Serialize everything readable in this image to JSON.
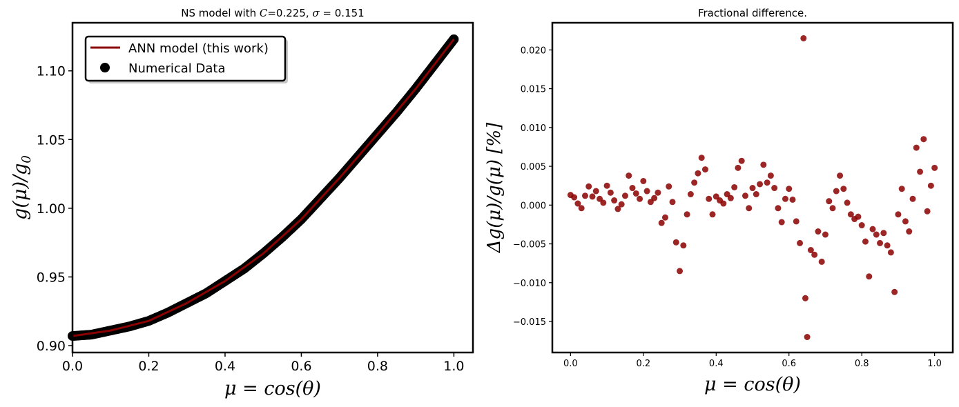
{
  "colors": {
    "ann_line": "#8b0000",
    "numerical_points": "#000000",
    "residual_points": "#8b0000"
  },
  "chart_data": [
    {
      "type": "scatter",
      "title": "NS model with C=0.225, σ = 0.151",
      "xlabel": "μ = cos(θ)",
      "ylabel": "g(μ)/g₀",
      "xlim": [
        0.0,
        1.05
      ],
      "ylim": [
        0.895,
        1.135
      ],
      "x_ticks": [
        "0.0",
        "0.2",
        "0.4",
        "0.6",
        "0.8",
        "1.0"
      ],
      "y_ticks": [
        "0.90",
        "0.95",
        "1.00",
        "1.05",
        "1.10"
      ],
      "grid": false,
      "legend_placement": "top-left",
      "series": [
        {
          "name": "ANN model (this work)",
          "kind": "line",
          "x": [
            0.0,
            0.1,
            0.2,
            0.3,
            0.4,
            0.5,
            0.6,
            0.7,
            0.8,
            0.9,
            1.0
          ],
          "y": [
            0.907,
            0.911,
            0.918,
            0.931,
            0.947,
            0.967,
            0.992,
            1.022,
            1.054,
            1.087,
            1.123
          ]
        },
        {
          "name": "Numerical Data",
          "kind": "scatter",
          "x": [
            0.0,
            0.05,
            0.1,
            0.15,
            0.2,
            0.25,
            0.3,
            0.35,
            0.4,
            0.45,
            0.5,
            0.55,
            0.6,
            0.65,
            0.7,
            0.75,
            0.8,
            0.85,
            0.9,
            0.95,
            1.0
          ],
          "y": [
            0.907,
            0.908,
            0.911,
            0.914,
            0.918,
            0.924,
            0.931,
            0.938,
            0.947,
            0.956,
            0.967,
            0.979,
            0.992,
            1.007,
            1.022,
            1.038,
            1.054,
            1.07,
            1.087,
            1.105,
            1.123
          ]
        }
      ]
    },
    {
      "type": "scatter",
      "title": "Fractional difference.",
      "xlabel": "μ = cos(θ)",
      "ylabel": "Δg(μ)/g(μ)  [%]",
      "xlim": [
        -0.05,
        1.05
      ],
      "ylim": [
        -0.019,
        0.0235
      ],
      "x_ticks": [
        "0.0",
        "0.2",
        "0.4",
        "0.6",
        "0.8",
        "1.0"
      ],
      "y_ticks": [
        "0.020",
        "0.015",
        "0.010",
        "0.005",
        "0.000",
        "−0.005",
        "−0.010",
        "−0.015"
      ],
      "grid": false,
      "series": [
        {
          "name": "",
          "x": [
            0.0,
            0.01,
            0.02,
            0.03,
            0.04,
            0.05,
            0.06,
            0.07,
            0.08,
            0.09,
            0.1,
            0.11,
            0.12,
            0.13,
            0.14,
            0.15,
            0.16,
            0.17,
            0.18,
            0.19,
            0.2,
            0.21,
            0.22,
            0.23,
            0.24,
            0.25,
            0.26,
            0.27,
            0.28,
            0.29,
            0.3,
            0.31,
            0.32,
            0.33,
            0.34,
            0.35,
            0.36,
            0.37,
            0.38,
            0.39,
            0.4,
            0.41,
            0.42,
            0.43,
            0.44,
            0.45,
            0.46,
            0.47,
            0.48,
            0.49,
            0.5,
            0.51,
            0.52,
            0.53,
            0.54,
            0.55,
            0.56,
            0.57,
            0.58,
            0.59,
            0.6,
            0.61,
            0.62,
            0.63,
            0.64,
            0.645,
            0.65,
            0.66,
            0.67,
            0.68,
            0.69,
            0.7,
            0.71,
            0.72,
            0.73,
            0.74,
            0.75,
            0.76,
            0.77,
            0.78,
            0.79,
            0.8,
            0.81,
            0.82,
            0.83,
            0.84,
            0.85,
            0.86,
            0.87,
            0.88,
            0.89,
            0.9,
            0.91,
            0.92,
            0.93,
            0.94,
            0.95,
            0.96,
            0.97,
            0.98,
            0.99,
            1.0
          ],
          "y": [
            0.0013,
            0.001,
            0.0002,
            -0.0004,
            0.0012,
            0.0024,
            0.0011,
            0.0018,
            0.0008,
            0.0003,
            0.0025,
            0.0016,
            0.0006,
            -0.0005,
            0.0001,
            0.0012,
            0.0038,
            0.0022,
            0.0015,
            0.0008,
            0.0031,
            0.0018,
            0.0004,
            0.0009,
            0.0016,
            -0.0023,
            -0.0016,
            0.0024,
            0.0004,
            -0.0048,
            -0.0085,
            -0.0052,
            -0.0012,
            0.0014,
            0.0029,
            0.0041,
            0.0061,
            0.0046,
            0.0008,
            -0.0012,
            0.0011,
            0.0006,
            0.0002,
            0.0014,
            0.0009,
            0.0023,
            0.0048,
            0.0057,
            0.0012,
            -0.0004,
            0.0022,
            0.0014,
            0.0027,
            0.0052,
            0.0029,
            0.0038,
            0.0022,
            -0.0004,
            -0.0022,
            0.0008,
            0.0021,
            0.0007,
            -0.0021,
            -0.0049,
            0.0215,
            -0.012,
            -0.017,
            -0.0058,
            -0.0064,
            -0.0034,
            -0.0073,
            -0.0038,
            0.0005,
            -0.0004,
            0.0018,
            0.0038,
            0.0021,
            0.0003,
            -0.0012,
            -0.0018,
            -0.0015,
            -0.0026,
            -0.0047,
            -0.0092,
            -0.0031,
            -0.0038,
            -0.0049,
            -0.0036,
            -0.0052,
            -0.0061,
            -0.0112,
            -0.0012,
            0.0021,
            -0.0021,
            -0.0034,
            0.0008,
            0.0074,
            0.0043,
            0.0085,
            -0.0008,
            0.0025,
            0.0048
          ]
        }
      ]
    }
  ]
}
